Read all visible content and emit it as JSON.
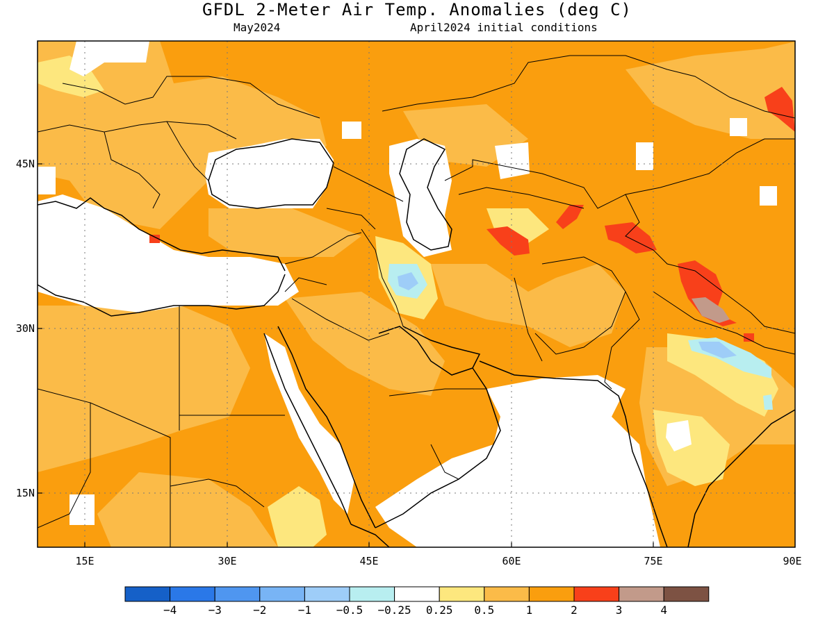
{
  "title": "GFDL 2-Meter Air Temp. Anomalies (deg C)",
  "subtitle_left": "May2024",
  "subtitle_right": "April2024 initial conditions",
  "map": {
    "lon_range": [
      10,
      90
    ],
    "lat_range": [
      10,
      56
    ],
    "lon_ticks": [
      {
        "value": 15,
        "label": "15E"
      },
      {
        "value": 30,
        "label": "30E"
      },
      {
        "value": 45,
        "label": "45E"
      },
      {
        "value": 60,
        "label": "60E"
      },
      {
        "value": 75,
        "label": "75E"
      },
      {
        "value": 90,
        "label": "90E"
      }
    ],
    "lat_ticks": [
      {
        "value": 45,
        "label": "45N"
      },
      {
        "value": 30,
        "label": "30N"
      },
      {
        "value": 15,
        "label": "15N"
      }
    ],
    "grid": "dotted"
  },
  "colorbar": {
    "colors": [
      "#1560c8",
      "#2a78e8",
      "#4f96f0",
      "#78b4f5",
      "#9ecdf8",
      "#b8eef0",
      "#ffffff",
      "#fde77e",
      "#fbbb48",
      "#fa9e0e",
      "#f8401a",
      "#c29a8a",
      "#7d5243"
    ],
    "labels": [
      "−4",
      "−3",
      "−2",
      "−1",
      "−0.5",
      "−0.25",
      "0.25",
      "0.5",
      "1",
      "2",
      "3",
      "4"
    ]
  },
  "anomaly_colors": {
    "white": "#ffffff",
    "light_yellow": "#fde77e",
    "light_orange": "#fbbb48",
    "orange": "#fa9e0e",
    "red": "#f8401a",
    "brownish": "#c29a8a",
    "light_blue": "#9ecdf8",
    "pale_blue": "#b8eef0"
  }
}
